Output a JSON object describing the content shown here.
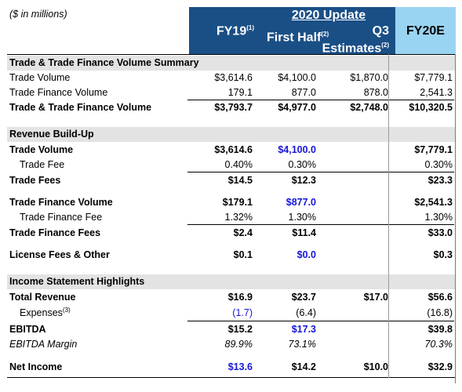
{
  "header": {
    "units": "($ in millions)",
    "fy19": "FY19",
    "fy19_note": "(1)",
    "update_title": "2020 Update",
    "first_half": "First Half",
    "first_half_note": "(2)",
    "q3": "Q3",
    "q3_sub": "Estimates",
    "q3_note": "(2)",
    "fy20e": "FY20E"
  },
  "sections": {
    "volume": "Trade & Trade Finance Volume Summary",
    "revenue": "Revenue Build-Up",
    "income": "Income Statement Highlights"
  },
  "rows": {
    "trade_volume": {
      "label": "Trade Volume",
      "fy19": "$3,614.6",
      "h1": "$4,100.0",
      "q3": "$1,870.0",
      "fy20e": "$7,779.1"
    },
    "trade_fin_volume": {
      "label": "Trade Finance Volume",
      "fy19": "179.1",
      "h1": "877.0",
      "q3": "878.0",
      "fy20e": "2,541.3"
    },
    "total_volume": {
      "label": "Trade & Trade Finance Volume",
      "fy19": "$3,793.7",
      "h1": "$4,977.0",
      "q3": "$2,748.0",
      "fy20e": "$10,320.5"
    },
    "rb_trade_volume": {
      "label": "Trade Volume",
      "fy19": "$3,614.6",
      "h1": "$4,100.0",
      "fy20e": "$7,779.1"
    },
    "trade_fee": {
      "label": "Trade Fee",
      "fy19": "0.40%",
      "h1": "0.30%",
      "fy20e": "0.30%"
    },
    "trade_fees": {
      "label": "Trade Fees",
      "fy19": "$14.5",
      "h1": "$12.3",
      "fy20e": "$23.3"
    },
    "rb_trade_fin_volume": {
      "label": "Trade Finance Volume",
      "fy19": "$179.1",
      "h1": "$877.0",
      "fy20e": "$2,541.3"
    },
    "trade_fin_fee": {
      "label": "Trade Finance Fee",
      "fy19": "1.32%",
      "h1": "1.30%",
      "fy20e": "1.30%"
    },
    "trade_fin_fees": {
      "label": "Trade Finance Fees",
      "fy19": "$2.4",
      "h1": "$11.4",
      "fy20e": "$33.0"
    },
    "license": {
      "label": "License Fees & Other",
      "fy19": "$0.1",
      "h1": "$0.0",
      "fy20e": "$0.3"
    },
    "total_revenue": {
      "label": "Total Revenue",
      "fy19": "$16.9",
      "h1": "$23.7",
      "q3": "$17.0",
      "fy20e": "$56.6"
    },
    "expenses": {
      "label": "Expenses",
      "note": "(3)",
      "fy19": "(1.7)",
      "h1": "(6.4)",
      "fy20e": "(16.8)"
    },
    "ebitda": {
      "label": "EBITDA",
      "fy19": "$15.2",
      "h1": "$17.3",
      "fy20e": "$39.8"
    },
    "ebitda_margin": {
      "label": "EBITDA Margin",
      "fy19": "89.9%",
      "h1": "73.1%",
      "fy20e": "70.3%"
    },
    "net_income": {
      "label": "Net Income",
      "fy19": "$13.6",
      "h1": "$14.2",
      "q3": "$10.0",
      "fy20e": "$32.9"
    }
  }
}
